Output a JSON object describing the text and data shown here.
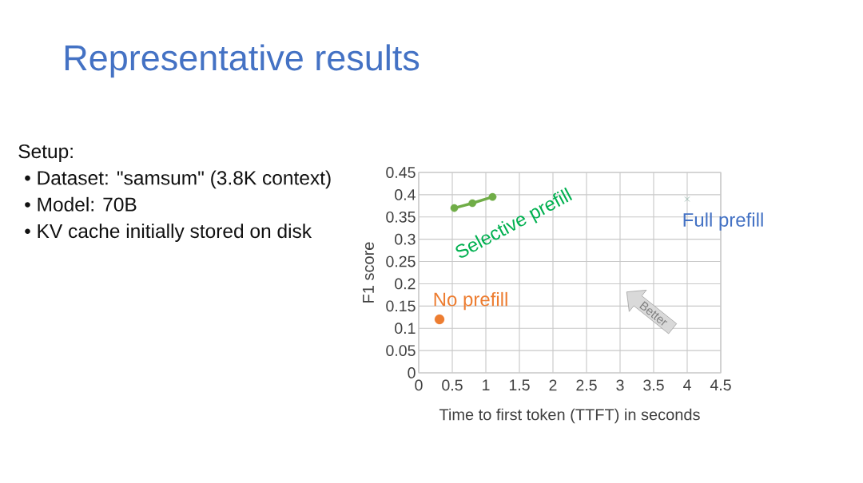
{
  "chart_data": {
    "type": "scatter",
    "title": "Representative results",
    "xlabel": "Time to first token (TTFT) in seconds",
    "ylabel": "F1 score",
    "series": [
      {
        "name": "Selective prefill",
        "type": "line",
        "marker": "circle",
        "color": "#70ad47",
        "x": [
          0.53,
          0.8,
          1.1
        ],
        "values": [
          0.37,
          0.381,
          0.395
        ]
      },
      {
        "name": "No prefill",
        "marker": "circle",
        "color": "#ed7d31",
        "x": [
          0.31
        ],
        "values": [
          0.12
        ]
      },
      {
        "name": "Full prefill",
        "marker": "cross",
        "color": "#95b8ac",
        "x": [
          4.0
        ],
        "values": [
          0.39
        ]
      }
    ],
    "xlim": [
      0,
      4.5
    ],
    "ylim": [
      0,
      0.45
    ],
    "xticks": [
      0,
      0.5,
      1,
      1.5,
      2,
      2.5,
      3,
      3.5,
      4,
      4.5
    ],
    "yticks": [
      0,
      0.05,
      0.1,
      0.15,
      0.2,
      0.25,
      0.3,
      0.35,
      0.4,
      0.45
    ],
    "grid": true,
    "annotations": [
      "Setup:",
      "• Dataset: \"samsum\" (3.8K context)",
      "• Model: 70B",
      "• KV cache initially stored on disk",
      "Better"
    ]
  }
}
